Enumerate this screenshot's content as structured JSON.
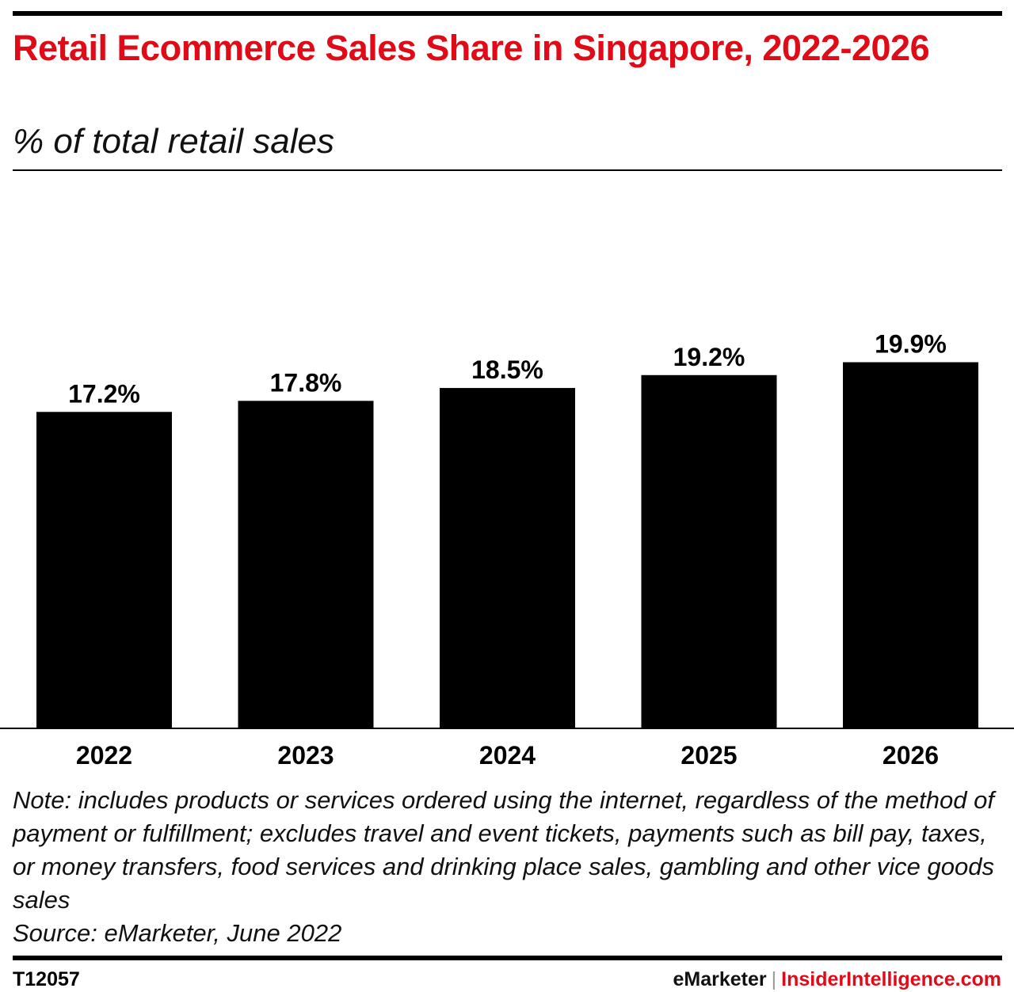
{
  "header": {
    "title": "Retail Ecommerce Sales Share in Singapore, 2022-2026",
    "subtitle": "% of total retail sales"
  },
  "chart_data": {
    "type": "bar",
    "categories": [
      "2022",
      "2023",
      "2024",
      "2025",
      "2026"
    ],
    "values": [
      17.2,
      17.8,
      18.5,
      19.2,
      19.9
    ],
    "value_labels": [
      "17.2%",
      "17.8%",
      "18.5%",
      "19.2%",
      "19.9%"
    ],
    "title": "Retail Ecommerce Sales Share in Singapore, 2022-2026",
    "subtitle": "% of total retail sales",
    "xlabel": "",
    "ylabel": "",
    "ylim": [
      0,
      25
    ],
    "grid": false,
    "bar_color": "#000000"
  },
  "footer": {
    "note": "Note: includes products or services ordered using the internet, regardless of the method of payment or fulfillment; excludes travel and event tickets, payments such as bill pay, taxes, or money transfers, food services and drinking place sales, gambling and other vice goods sales",
    "source": "Source: eMarketer, June 2022",
    "chart_id": "T12057",
    "brand_left": "eMarketer",
    "brand_sep": "|",
    "brand_right": "InsiderIntelligence.com"
  },
  "colors": {
    "accent": "#e10a17",
    "text": "#000000"
  }
}
